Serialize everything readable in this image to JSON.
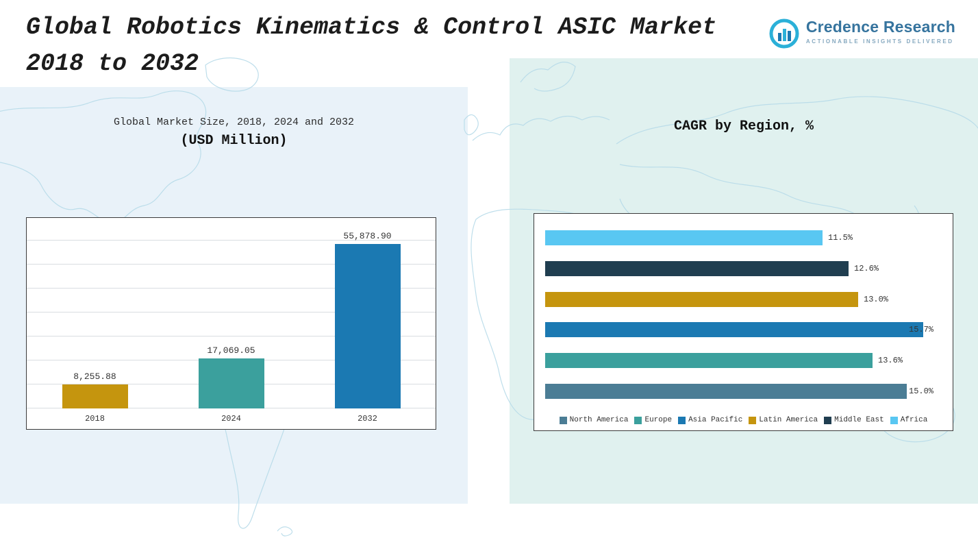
{
  "header": {
    "title_line1": "Global Robotics Kinematics & Control ASIC Market",
    "title_line2": "2018 to 2032",
    "logo": {
      "name": "Credence Research",
      "tagline": "Actionable Insights Delivered",
      "icon": "bar-chart-circle-icon",
      "brand_color": "#36749e",
      "tagline_color": "#85a8bf"
    }
  },
  "theme": {
    "left_panel_color": "#e9f2f9",
    "right_panel_color": "#e0f1ef",
    "map_line_color": "#b7dbe9",
    "chart_border_color": "#3a3a3a",
    "gridline_color": "#d9dde1"
  },
  "chart_data": [
    {
      "type": "bar",
      "title": "Global Market Size, 2018, 2024 and 2032",
      "subtitle": "(USD Million)",
      "categories": [
        "2018",
        "2024",
        "2032"
      ],
      "values": [
        8255.88,
        17069.05,
        55878.9
      ],
      "value_labels": [
        "8,255.88",
        "17,069.05",
        "55,878.90"
      ],
      "colors": [
        "#c5950e",
        "#3ba09d",
        "#1b79b2"
      ],
      "ylim": [
        0,
        57000
      ],
      "grid": true,
      "legend_position": "none"
    },
    {
      "type": "bar-horizontal",
      "title": "CAGR by Region, %",
      "categories": [
        "Africa",
        "Middle East",
        "Latin America",
        "Asia Pacific",
        "Europe",
        "North America"
      ],
      "values": [
        11.5,
        12.6,
        13.0,
        15.7,
        13.6,
        15.0
      ],
      "value_labels": [
        "11.5%",
        "12.6%",
        "13.0%",
        "15.7%",
        "13.6%",
        "15.0%"
      ],
      "colors": [
        "#59c7f2",
        "#203e50",
        "#c5950e",
        "#1b79b2",
        "#3ba09d",
        "#4b7d95"
      ],
      "xlim": [
        0,
        16.4
      ],
      "grid": false,
      "legend_position": "bottom",
      "legend": [
        {
          "label": "North America",
          "color": "#4b7d95"
        },
        {
          "label": "Europe",
          "color": "#3ba09d"
        },
        {
          "label": "Asia Pacific",
          "color": "#1b79b2"
        },
        {
          "label": "Latin America",
          "color": "#c5950e"
        },
        {
          "label": "Middle East",
          "color": "#203e50"
        },
        {
          "label": "Africa",
          "color": "#59c7f2"
        }
      ]
    }
  ]
}
